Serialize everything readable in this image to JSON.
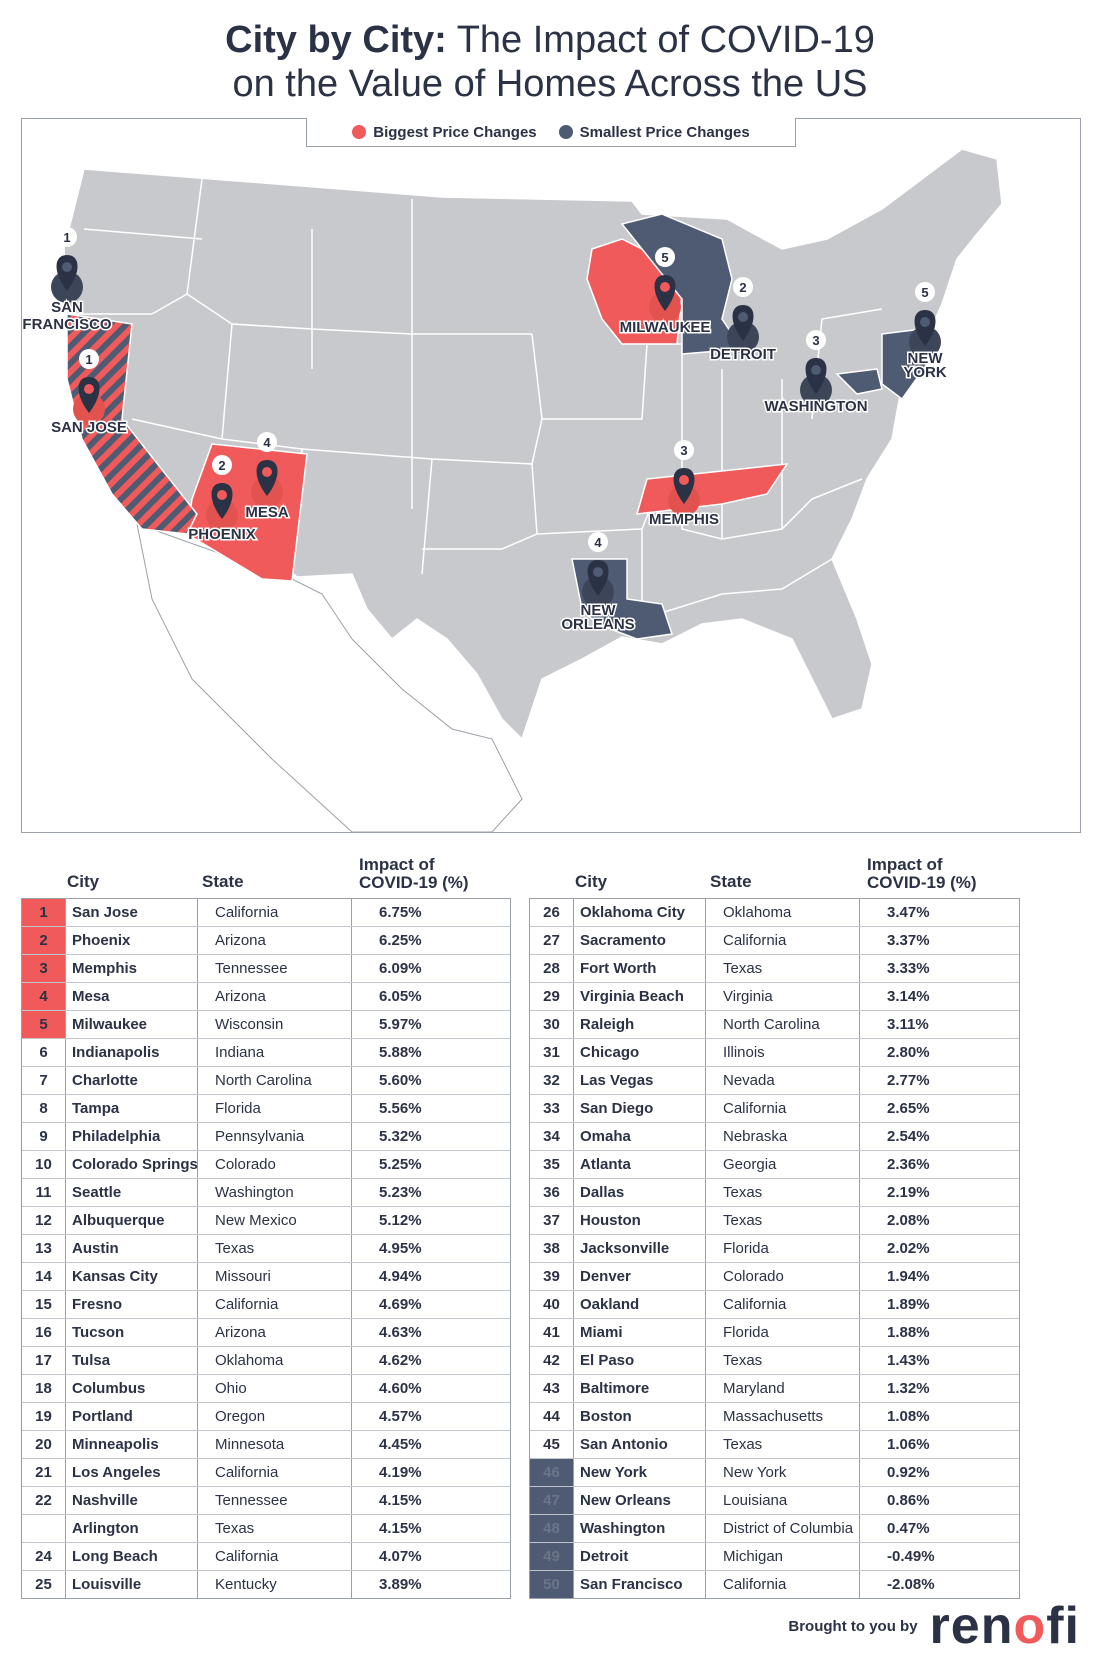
{
  "title": {
    "bold": "City by City:",
    "rest": " The Impact of COVID-19",
    "line2": "on the Value of Homes Across the US"
  },
  "legend": {
    "biggest": "Biggest Price Changes",
    "smallest": "Smallest Price Changes",
    "biggest_color": "#f05a5a",
    "smallest_color": "#4f5b72"
  },
  "colors": {
    "land": "#c8c9cc",
    "border": "#ffffff",
    "red": "#f05a5a",
    "navy": "#4f5b72",
    "pin": "#2b3245"
  },
  "map_markers": [
    {
      "num": "1",
      "label": "SAN",
      "label2": "FRANCISCO",
      "group": "smallest"
    },
    {
      "num": "1",
      "label": "SAN JOSE",
      "group": "biggest"
    },
    {
      "num": "2",
      "label": "PHOENIX",
      "group": "biggest"
    },
    {
      "num": "4",
      "label": "MESA",
      "group": "biggest"
    },
    {
      "num": "5",
      "label": "MILWAUKEE",
      "group": "biggest"
    },
    {
      "num": "2",
      "label": "DETROIT",
      "group": "smallest"
    },
    {
      "num": "3",
      "label": "WASHINGTON",
      "group": "smallest"
    },
    {
      "num": "5",
      "label": "NEW",
      "label2": "YORK",
      "group": "smallest"
    },
    {
      "num": "3",
      "label": "MEMPHIS",
      "group": "biggest"
    },
    {
      "num": "4",
      "label": "NEW",
      "label2": "ORLEANS",
      "group": "smallest"
    }
  ],
  "table_headers": {
    "city": "City",
    "state": "State",
    "impact1": "Impact of",
    "impact2": "COVID-19 (%)"
  },
  "table_left": [
    {
      "rank": "1",
      "city": "San Jose",
      "state": "California",
      "impact": "6.75%",
      "hl": "red"
    },
    {
      "rank": "2",
      "city": "Phoenix",
      "state": "Arizona",
      "impact": "6.25%",
      "hl": "red"
    },
    {
      "rank": "3",
      "city": "Memphis",
      "state": "Tennessee",
      "impact": "6.09%",
      "hl": "red"
    },
    {
      "rank": "4",
      "city": "Mesa",
      "state": "Arizona",
      "impact": "6.05%",
      "hl": "red"
    },
    {
      "rank": "5",
      "city": "Milwaukee",
      "state": "Wisconsin",
      "impact": "5.97%",
      "hl": "red"
    },
    {
      "rank": "6",
      "city": "Indianapolis",
      "state": "Indiana",
      "impact": "5.88%",
      "hl": ""
    },
    {
      "rank": "7",
      "city": "Charlotte",
      "state": "North Carolina",
      "impact": "5.60%",
      "hl": ""
    },
    {
      "rank": "8",
      "city": "Tampa",
      "state": "Florida",
      "impact": "5.56%",
      "hl": ""
    },
    {
      "rank": "9",
      "city": "Philadelphia",
      "state": "Pennsylvania",
      "impact": "5.32%",
      "hl": ""
    },
    {
      "rank": "10",
      "city": "Colorado Springs",
      "state": "Colorado",
      "impact": "5.25%",
      "hl": ""
    },
    {
      "rank": "11",
      "city": "Seattle",
      "state": "Washington",
      "impact": "5.23%",
      "hl": ""
    },
    {
      "rank": "12",
      "city": "Albuquerque",
      "state": "New Mexico",
      "impact": "5.12%",
      "hl": ""
    },
    {
      "rank": "13",
      "city": "Austin",
      "state": "Texas",
      "impact": "4.95%",
      "hl": ""
    },
    {
      "rank": "14",
      "city": "Kansas City",
      "state": "Missouri",
      "impact": "4.94%",
      "hl": ""
    },
    {
      "rank": "15",
      "city": "Fresno",
      "state": "California",
      "impact": "4.69%",
      "hl": ""
    },
    {
      "rank": "16",
      "city": "Tucson",
      "state": "Arizona",
      "impact": "4.63%",
      "hl": ""
    },
    {
      "rank": "17",
      "city": "Tulsa",
      "state": "Oklahoma",
      "impact": "4.62%",
      "hl": ""
    },
    {
      "rank": "18",
      "city": "Columbus",
      "state": "Ohio",
      "impact": "4.60%",
      "hl": ""
    },
    {
      "rank": "19",
      "city": "Portland",
      "state": "Oregon",
      "impact": "4.57%",
      "hl": ""
    },
    {
      "rank": "20",
      "city": "Minneapolis",
      "state": "Minnesota",
      "impact": "4.45%",
      "hl": ""
    },
    {
      "rank": "21",
      "city": "Los Angeles",
      "state": "California",
      "impact": "4.19%",
      "hl": ""
    },
    {
      "rank": "22",
      "city": "Nashville",
      "state": "Tennessee",
      "impact": "4.15%",
      "hl": ""
    },
    {
      "rank": "",
      "city": "Arlington",
      "state": "Texas",
      "impact": "4.15%",
      "hl": ""
    },
    {
      "rank": "24",
      "city": "Long Beach",
      "state": "California",
      "impact": "4.07%",
      "hl": ""
    },
    {
      "rank": "25",
      "city": "Louisville",
      "state": "Kentucky",
      "impact": "3.89%",
      "hl": ""
    }
  ],
  "table_right": [
    {
      "rank": "26",
      "city": "Oklahoma City",
      "state": "Oklahoma",
      "impact": "3.47%",
      "hl": ""
    },
    {
      "rank": "27",
      "city": "Sacramento",
      "state": "California",
      "impact": "3.37%",
      "hl": ""
    },
    {
      "rank": "28",
      "city": "Fort Worth",
      "state": "Texas",
      "impact": "3.33%",
      "hl": ""
    },
    {
      "rank": "29",
      "city": "Virginia Beach",
      "state": "Virginia",
      "impact": "3.14%",
      "hl": ""
    },
    {
      "rank": "30",
      "city": "Raleigh",
      "state": "North Carolina",
      "impact": "3.11%",
      "hl": ""
    },
    {
      "rank": "31",
      "city": "Chicago",
      "state": "Illinois",
      "impact": "2.80%",
      "hl": ""
    },
    {
      "rank": "32",
      "city": "Las Vegas",
      "state": "Nevada",
      "impact": "2.77%",
      "hl": ""
    },
    {
      "rank": "33",
      "city": "San Diego",
      "state": "California",
      "impact": "2.65%",
      "hl": ""
    },
    {
      "rank": "34",
      "city": "Omaha",
      "state": "Nebraska",
      "impact": "2.54%",
      "hl": ""
    },
    {
      "rank": "35",
      "city": "Atlanta",
      "state": "Georgia",
      "impact": "2.36%",
      "hl": ""
    },
    {
      "rank": "36",
      "city": "Dallas",
      "state": "Texas",
      "impact": "2.19%",
      "hl": ""
    },
    {
      "rank": "37",
      "city": "Houston",
      "state": "Texas",
      "impact": "2.08%",
      "hl": ""
    },
    {
      "rank": "38",
      "city": "Jacksonville",
      "state": "Florida",
      "impact": "2.02%",
      "hl": ""
    },
    {
      "rank": "39",
      "city": "Denver",
      "state": "Colorado",
      "impact": "1.94%",
      "hl": ""
    },
    {
      "rank": "40",
      "city": "Oakland",
      "state": "California",
      "impact": "1.89%",
      "hl": ""
    },
    {
      "rank": "41",
      "city": "Miami",
      "state": "Florida",
      "impact": "1.88%",
      "hl": ""
    },
    {
      "rank": "42",
      "city": "El Paso",
      "state": "Texas",
      "impact": "1.43%",
      "hl": ""
    },
    {
      "rank": "43",
      "city": "Baltimore",
      "state": "Maryland",
      "impact": "1.32%",
      "hl": ""
    },
    {
      "rank": "44",
      "city": "Boston",
      "state": "Massachusetts",
      "impact": "1.08%",
      "hl": ""
    },
    {
      "rank": "45",
      "city": "San Antonio",
      "state": "Texas",
      "impact": "1.06%",
      "hl": ""
    },
    {
      "rank": "46",
      "city": "New York",
      "state": "New York",
      "impact": "0.92%",
      "hl": "navy"
    },
    {
      "rank": "47",
      "city": "New Orleans",
      "state": "Louisiana",
      "impact": "0.86%",
      "hl": "navy"
    },
    {
      "rank": "48",
      "city": "Washington",
      "state": "District of Columbia",
      "impact": "0.47%",
      "hl": "navy"
    },
    {
      "rank": "49",
      "city": "Detroit",
      "state": "Michigan",
      "impact": "-0.49%",
      "hl": "navy"
    },
    {
      "rank": "50",
      "city": "San Francisco",
      "state": "California",
      "impact": "-2.08%",
      "hl": "navy"
    }
  ],
  "credit": {
    "by": "Brought to you by",
    "logo_a": "ren",
    "logo_b": "o",
    "logo_c": "fi"
  }
}
